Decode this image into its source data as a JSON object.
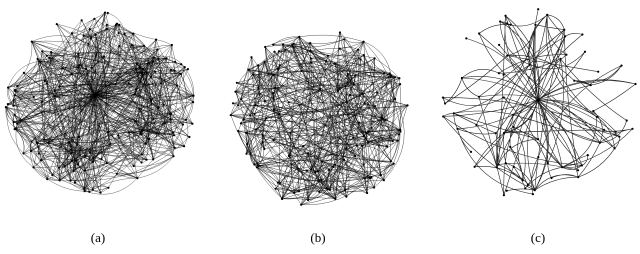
{
  "figure": {
    "panels": [
      {
        "caption": "(a)"
      },
      {
        "caption": "(b)"
      },
      {
        "caption": "(c)"
      }
    ]
  }
}
